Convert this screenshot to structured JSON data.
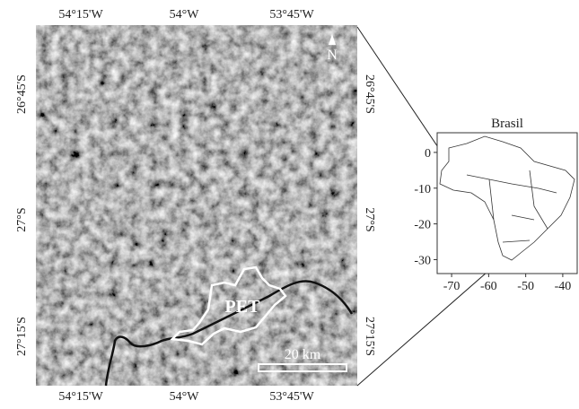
{
  "main_map": {
    "top_labels": [
      "54°15'W",
      "54°W",
      "53°45'W"
    ],
    "bottom_labels": [
      "54°15'W",
      "54°W",
      "53°45'W"
    ],
    "left_labels": [
      "26°45'S",
      "27°S",
      "27°15'S"
    ],
    "right_labels": [
      "26°45'S",
      "27°S",
      "27°15'S"
    ],
    "north": "N",
    "area_label": "PET",
    "scale_label": "20 km"
  },
  "inset": {
    "title": "Brasil",
    "xlim": [
      -73.9,
      -36.1
    ],
    "ylim": [
      -33.9,
      5.5
    ],
    "xticks": [
      -70,
      -60,
      -50,
      -40
    ],
    "yticks": [
      0,
      -10,
      -20,
      -30
    ]
  }
}
